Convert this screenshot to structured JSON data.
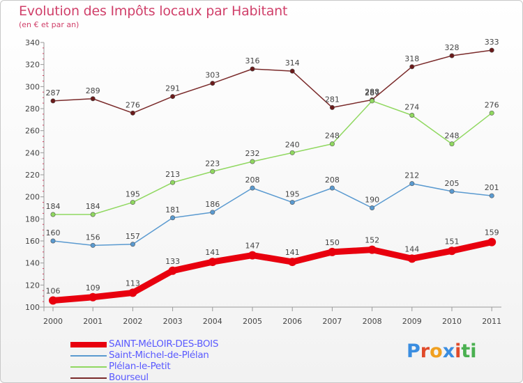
{
  "title": "Evolution des Impôts locaux par Habitant",
  "subtitle": "(en € et par an)",
  "logo": {
    "letters": [
      {
        "ch": "P",
        "color": "#3a8de0"
      },
      {
        "ch": "r",
        "color": "#e04a2a"
      },
      {
        "ch": "o",
        "color": "#f0a020"
      },
      {
        "ch": "x",
        "color": "#3a8de0"
      },
      {
        "ch": "i",
        "color": "#e04a2a"
      },
      {
        "ch": "t",
        "color": "#4ab050"
      },
      {
        "ch": "i",
        "color": "#4ab050"
      }
    ]
  },
  "chart_data": {
    "type": "line",
    "title": "Evolution des Impôts locaux par Habitant",
    "subtitle": "(en € et par an)",
    "xlabel": "",
    "ylabel": "",
    "categories": [
      "2000",
      "2001",
      "2002",
      "2003",
      "2004",
      "2005",
      "2006",
      "2007",
      "2008",
      "2009",
      "2010",
      "2011"
    ],
    "ylim": [
      100,
      340
    ],
    "yticks": [
      100,
      120,
      140,
      160,
      180,
      200,
      220,
      240,
      260,
      280,
      300,
      320,
      340
    ],
    "grid": false,
    "legend_position": "bottom-left",
    "series": [
      {
        "name": "SAINT-MéLOIR-DES-BOIS",
        "color": "#e8000e",
        "point_color": "#e8000e",
        "thick": true,
        "values": [
          106,
          109,
          113,
          133,
          141,
          147,
          141,
          150,
          152,
          144,
          151,
          159
        ]
      },
      {
        "name": "Saint-Michel-de-Plélan",
        "color": "#5a9ad0",
        "point_color": "#5a9ad0",
        "thick": false,
        "values": [
          160,
          156,
          157,
          181,
          186,
          208,
          195,
          208,
          190,
          212,
          205,
          201
        ]
      },
      {
        "name": "Plélan-le-Petit",
        "color": "#90d860",
        "point_color": "#90d860",
        "thick": false,
        "values": [
          184,
          184,
          195,
          213,
          223,
          232,
          240,
          248,
          287,
          274,
          248,
          276
        ]
      },
      {
        "name": "Bourseul",
        "color": "#7a2a2a",
        "point_color": "#6a1a1a",
        "thick": false,
        "values": [
          287,
          289,
          276,
          291,
          303,
          316,
          314,
          281,
          288,
          318,
          328,
          333
        ]
      }
    ]
  }
}
